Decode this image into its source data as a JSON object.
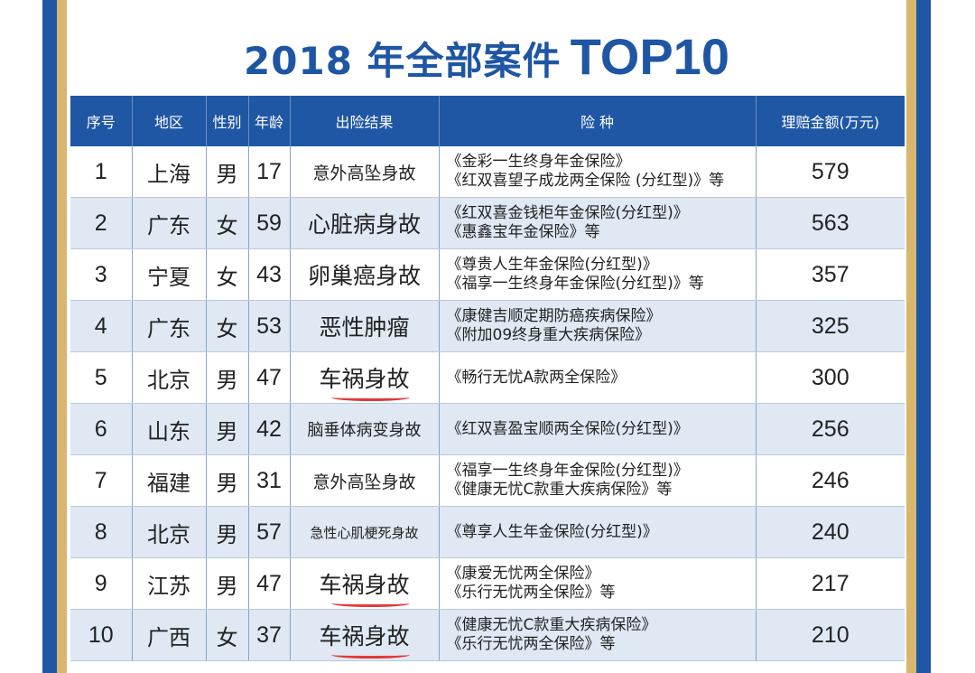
{
  "title": {
    "main": "2018 年全部案件",
    "top": "TOP10"
  },
  "columns": [
    "序号",
    "地区",
    "性别",
    "年龄",
    "出险结果",
    "险 种",
    "理赔金额(万元)"
  ],
  "rows": [
    {
      "no": "1",
      "region": "上海",
      "gender": "男",
      "age": "17",
      "result": "意外高坠身故",
      "products": [
        "《金彩一生终身年金保险》",
        "《红双喜望子成龙两全保险 (分红型)》等"
      ],
      "amount": "579"
    },
    {
      "no": "2",
      "region": "广东",
      "gender": "女",
      "age": "59",
      "result": "心脏病身故",
      "products": [
        "《红双喜金钱柜年金保险(分红型)》",
        "《惠鑫宝年金保险》等"
      ],
      "amount": "563"
    },
    {
      "no": "3",
      "region": "宁夏",
      "gender": "女",
      "age": "43",
      "result": "卵巢癌身故",
      "products": [
        "《尊贵人生年金保险(分红型)》",
        "《福享一生终身年金保险(分红型)》等"
      ],
      "amount": "357"
    },
    {
      "no": "4",
      "region": "广东",
      "gender": "女",
      "age": "53",
      "result": "恶性肿瘤",
      "products": [
        "《康健吉顺定期防癌疾病保险》",
        "《附加09终身重大疾病保险》"
      ],
      "amount": "325"
    },
    {
      "no": "5",
      "region": "北京",
      "gender": "男",
      "age": "47",
      "result": "车祸身故",
      "products": [
        "《畅行无忧A款两全保险》"
      ],
      "amount": "300"
    },
    {
      "no": "6",
      "region": "山东",
      "gender": "男",
      "age": "42",
      "result": "脑垂体病变身故",
      "products": [
        "《红双喜盈宝顺两全保险(分红型)》"
      ],
      "amount": "256"
    },
    {
      "no": "7",
      "region": "福建",
      "gender": "男",
      "age": "31",
      "result": "意外高坠身故",
      "products": [
        "《福享一生终身年金保险(分红型)》",
        "《健康无忧C款重大疾病保险》等"
      ],
      "amount": "246"
    },
    {
      "no": "8",
      "region": "北京",
      "gender": "男",
      "age": "57",
      "result": "急性心肌梗死身故",
      "products": [
        "《尊享人生年金保险(分红型)》"
      ],
      "amount": "240"
    },
    {
      "no": "9",
      "region": "江苏",
      "gender": "男",
      "age": "47",
      "result": "车祸身故",
      "products": [
        "《康爱无忧两全保险》",
        "《乐行无忧两全保险》等"
      ],
      "amount": "217"
    },
    {
      "no": "10",
      "region": "广西",
      "gender": "女",
      "age": "37",
      "result": "车祸身故",
      "products": [
        "《健康无忧C款重大疾病保险》",
        "《乐行无忧两全保险》等"
      ],
      "amount": "210"
    }
  ]
}
